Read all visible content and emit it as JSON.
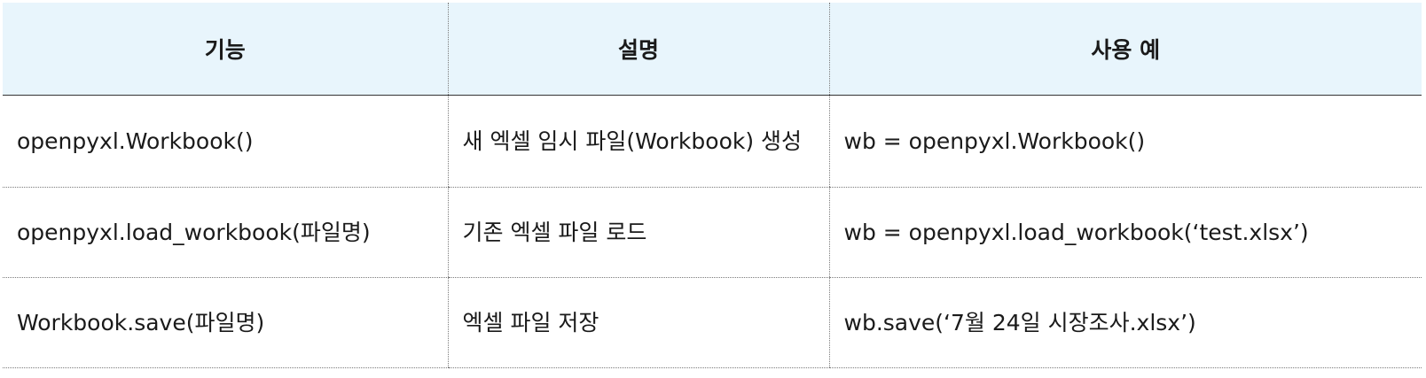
{
  "table": {
    "headers": [
      "기능",
      "설명",
      "사용 예"
    ],
    "rows": [
      {
        "function": "openpyxl.Workbook()",
        "description": "새 엑셀 임시 파일(Workbook) 생성",
        "example": "wb = openpyxl.Workbook()"
      },
      {
        "function": "openpyxl.load_workbook(파일명)",
        "description": "기존 엑셀 파일 로드",
        "example": "wb = openpyxl.load_workbook(‘test.xlsx’)"
      },
      {
        "function": "Workbook.save(파일명)",
        "description": "엑셀 파일 저장",
        "example": "wb.save(‘7월 24일 시장조사.xlsx’)"
      }
    ]
  },
  "colors": {
    "header_background": "#e8f5fc",
    "text": "#1a1a1a",
    "header_rule": "#333333",
    "dotted_rule": "#7a7a7a"
  }
}
